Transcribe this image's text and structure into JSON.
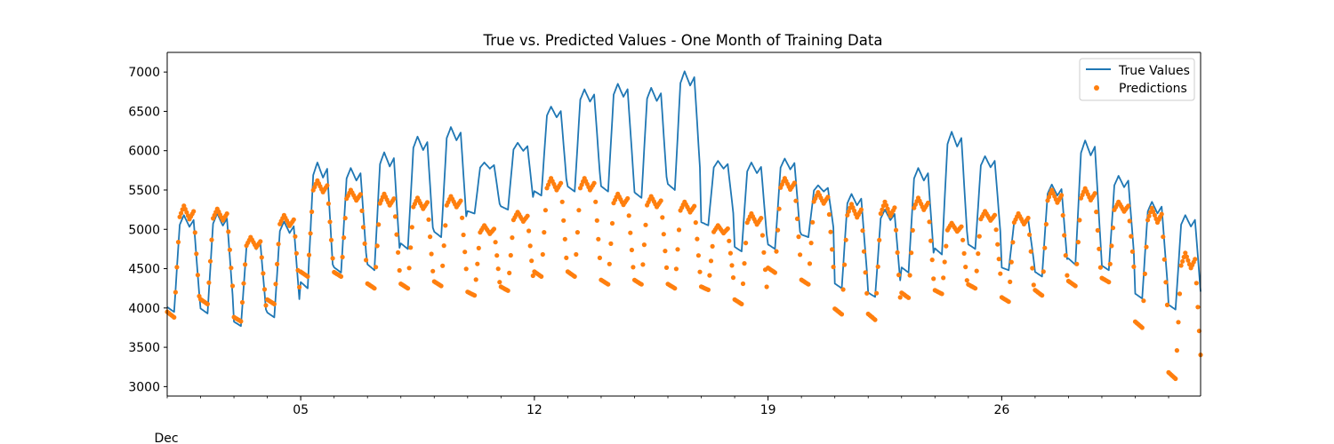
{
  "chart_data": {
    "type": "line",
    "title": "True vs. Predicted Values - One Month of Training Data",
    "xlabel": "",
    "ylabel": "",
    "x_range": [
      "2018-12-01T00:00",
      "2018-12-31T23:00"
    ],
    "ylim": [
      2880,
      7250
    ],
    "y_ticks": [
      3000,
      3500,
      4000,
      4500,
      5000,
      5500,
      6000,
      6500,
      7000
    ],
    "x_ticks": [
      {
        "value": "2018-12-05",
        "label": "05"
      },
      {
        "value": "2018-12-12",
        "label": "12"
      },
      {
        "value": "2018-12-19",
        "label": "19"
      },
      {
        "value": "2018-12-26",
        "label": "26"
      }
    ],
    "x_secondary_label": "Dec",
    "grid": false,
    "legend_position": "top-right",
    "sampling": "hourly",
    "series": [
      {
        "name": "True Values",
        "style": "line",
        "color": "#1f77b4",
        "daily_profile": [
          {
            "day": "2018-12-01",
            "min": 3950,
            "max": 5180
          },
          {
            "day": "2018-12-02",
            "min": 3930,
            "max": 5200
          },
          {
            "day": "2018-12-03",
            "min": 3770,
            "max": 4880
          },
          {
            "day": "2018-12-04",
            "min": 3880,
            "max": 5100
          },
          {
            "day": "2018-12-05",
            "min": 4250,
            "max": 5850
          },
          {
            "day": "2018-12-06",
            "min": 4450,
            "max": 5780
          },
          {
            "day": "2018-12-07",
            "min": 4480,
            "max": 5980
          },
          {
            "day": "2018-12-08",
            "min": 4750,
            "max": 6180
          },
          {
            "day": "2018-12-09",
            "min": 4900,
            "max": 6300
          },
          {
            "day": "2018-12-10",
            "min": 5200,
            "max": 5850
          },
          {
            "day": "2018-12-11",
            "min": 5250,
            "max": 6100
          },
          {
            "day": "2018-12-12",
            "min": 5430,
            "max": 6560
          },
          {
            "day": "2018-12-13",
            "min": 5480,
            "max": 6780
          },
          {
            "day": "2018-12-14",
            "min": 5480,
            "max": 6850
          },
          {
            "day": "2018-12-15",
            "min": 5400,
            "max": 6800
          },
          {
            "day": "2018-12-16",
            "min": 5500,
            "max": 7010
          },
          {
            "day": "2018-12-17",
            "min": 5050,
            "max": 5870
          },
          {
            "day": "2018-12-18",
            "min": 4720,
            "max": 5850
          },
          {
            "day": "2018-12-19",
            "min": 4750,
            "max": 5900
          },
          {
            "day": "2018-12-20",
            "min": 4900,
            "max": 5560
          },
          {
            "day": "2018-12-21",
            "min": 4250,
            "max": 5450
          },
          {
            "day": "2018-12-22",
            "min": 4140,
            "max": 5250
          },
          {
            "day": "2018-12-23",
            "min": 4450,
            "max": 5780
          },
          {
            "day": "2018-12-24",
            "min": 4680,
            "max": 6240
          },
          {
            "day": "2018-12-25",
            "min": 4750,
            "max": 5930
          },
          {
            "day": "2018-12-26",
            "min": 4480,
            "max": 5170
          },
          {
            "day": "2018-12-27",
            "min": 4400,
            "max": 5570
          },
          {
            "day": "2018-12-28",
            "min": 4550,
            "max": 6130
          },
          {
            "day": "2018-12-29",
            "min": 4480,
            "max": 5680
          },
          {
            "day": "2018-12-30",
            "min": 4120,
            "max": 5350
          },
          {
            "day": "2018-12-31",
            "min": 3980,
            "max": 5180
          }
        ]
      },
      {
        "name": "Predictions",
        "style": "scatter",
        "color": "#ff7f0e",
        "daily_profile": [
          {
            "day": "2018-12-01",
            "min": 3880,
            "max": 5300
          },
          {
            "day": "2018-12-02",
            "min": 4050,
            "max": 5260
          },
          {
            "day": "2018-12-03",
            "min": 3830,
            "max": 4900
          },
          {
            "day": "2018-12-04",
            "min": 4050,
            "max": 5180
          },
          {
            "day": "2018-12-05",
            "min": 4400,
            "max": 5620
          },
          {
            "day": "2018-12-06",
            "min": 4400,
            "max": 5500
          },
          {
            "day": "2018-12-07",
            "min": 4250,
            "max": 5450
          },
          {
            "day": "2018-12-08",
            "min": 4250,
            "max": 5400
          },
          {
            "day": "2018-12-09",
            "min": 4280,
            "max": 5420
          },
          {
            "day": "2018-12-10",
            "min": 4160,
            "max": 5050
          },
          {
            "day": "2018-12-11",
            "min": 4220,
            "max": 5220
          },
          {
            "day": "2018-12-12",
            "min": 4400,
            "max": 5650
          },
          {
            "day": "2018-12-13",
            "min": 4400,
            "max": 5650
          },
          {
            "day": "2018-12-14",
            "min": 4300,
            "max": 5450
          },
          {
            "day": "2018-12-15",
            "min": 4300,
            "max": 5420
          },
          {
            "day": "2018-12-16",
            "min": 4250,
            "max": 5350
          },
          {
            "day": "2018-12-17",
            "min": 4230,
            "max": 5050
          },
          {
            "day": "2018-12-18",
            "min": 4050,
            "max": 5200
          },
          {
            "day": "2018-12-19",
            "min": 4450,
            "max": 5650
          },
          {
            "day": "2018-12-20",
            "min": 4300,
            "max": 5470
          },
          {
            "day": "2018-12-21",
            "min": 3920,
            "max": 5320
          },
          {
            "day": "2018-12-22",
            "min": 3850,
            "max": 5350
          },
          {
            "day": "2018-12-23",
            "min": 4130,
            "max": 5400
          },
          {
            "day": "2018-12-24",
            "min": 4180,
            "max": 5080
          },
          {
            "day": "2018-12-25",
            "min": 4250,
            "max": 5230
          },
          {
            "day": "2018-12-26",
            "min": 4080,
            "max": 5200
          },
          {
            "day": "2018-12-27",
            "min": 4160,
            "max": 5500
          },
          {
            "day": "2018-12-28",
            "min": 4280,
            "max": 5520
          },
          {
            "day": "2018-12-29",
            "min": 4330,
            "max": 5350
          },
          {
            "day": "2018-12-30",
            "min": 3750,
            "max": 5270
          },
          {
            "day": "2018-12-31",
            "min": 3100,
            "max": 4700
          }
        ]
      }
    ]
  }
}
